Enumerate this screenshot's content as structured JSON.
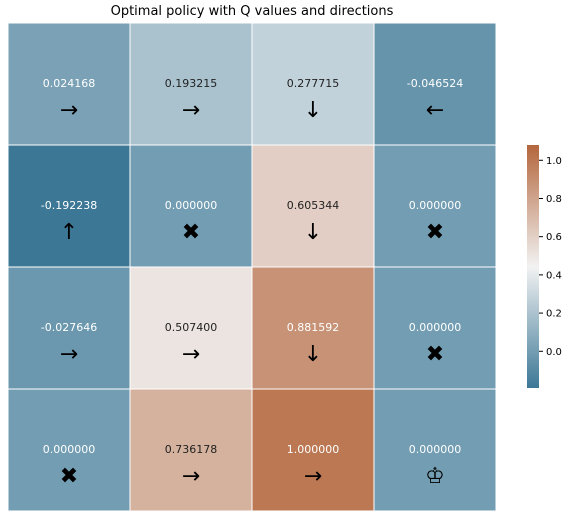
{
  "chart_data": {
    "type": "heatmap",
    "title": "Optimal policy with Q values and directions",
    "rows": 4,
    "cols": 4,
    "values": [
      [
        0.024168,
        0.193215,
        0.277715,
        -0.046524
      ],
      [
        -0.192238,
        0.0,
        0.605344,
        0.0
      ],
      [
        -0.027646,
        0.5074,
        0.881592,
        0.0
      ],
      [
        0.0,
        0.736178,
        1.0,
        0.0
      ]
    ],
    "labels": [
      [
        "0.024168",
        "0.193215",
        "0.277715",
        "-0.046524"
      ],
      [
        "-0.192238",
        "0.000000",
        "0.605344",
        "0.000000"
      ],
      [
        "-0.027646",
        "0.507400",
        "0.881592",
        "0.000000"
      ],
      [
        "0.000000",
        "0.736178",
        "1.000000",
        "0.000000"
      ]
    ],
    "directions": [
      [
        "→",
        "→",
        "↓",
        "←"
      ],
      [
        "↑",
        "✖",
        "↓",
        "✖"
      ],
      [
        "→",
        "→",
        "↓",
        "✖"
      ],
      [
        "✖",
        "→",
        "→",
        "♔"
      ]
    ],
    "colorbar": {
      "vmin": -0.192238,
      "vmax": 1.08,
      "ticks": [
        0.0,
        0.2,
        0.4,
        0.6,
        0.8,
        1.0
      ],
      "tick_labels": [
        "0.0",
        "0.2",
        "0.4",
        "0.6",
        "0.8",
        "1.0"
      ],
      "colors": {
        "low": "#3c7896",
        "mid": "#f2f2f2",
        "high": "#b3663c"
      },
      "midpoint": 0.444
    },
    "grid_line_color": "#ffffff"
  }
}
